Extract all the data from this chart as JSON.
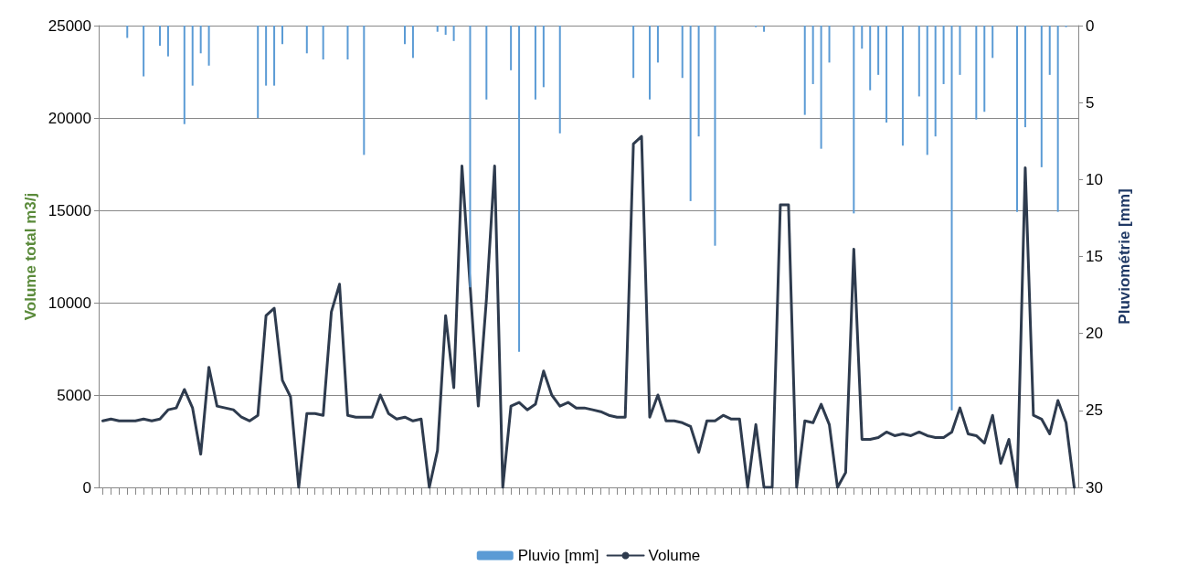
{
  "chart_data": {
    "type": "line",
    "ylabel": "Volume total m3/j",
    "y2label": "Pluviométrie [mm]",
    "categories": [
      null,
      null,
      null,
      null,
      null,
      null,
      null,
      null,
      null,
      null,
      null,
      null,
      null,
      null,
      null,
      null,
      null,
      null,
      null,
      null,
      null,
      null,
      null,
      null,
      null,
      null,
      null,
      null,
      null,
      null,
      null,
      null,
      null,
      null,
      null,
      null,
      null,
      null,
      null,
      null,
      null,
      null,
      null,
      null,
      null,
      null,
      null,
      null,
      null,
      null,
      null,
      null,
      null,
      null,
      null,
      null,
      null,
      null,
      null,
      null,
      null,
      null,
      null,
      null,
      null,
      null,
      null,
      null,
      null,
      null,
      null,
      null,
      null,
      null,
      null,
      null,
      null,
      null,
      null,
      null,
      null,
      null,
      null,
      null,
      null,
      null,
      null,
      null,
      null,
      null,
      null,
      null,
      null,
      null,
      null,
      null,
      null,
      null,
      null,
      null,
      null,
      null,
      null,
      null,
      null,
      null,
      null,
      null,
      null,
      null,
      null,
      null,
      null,
      null,
      null,
      null,
      null,
      null,
      null,
      null
    ],
    "series": [
      {
        "name": "Pluvio [mm]",
        "type": "bar",
        "axis": "y2",
        "color": "#5b9bd5",
        "values": [
          0,
          0,
          0,
          0.8,
          0,
          3.3,
          0,
          1.3,
          2.0,
          0,
          6.4,
          3.9,
          1.8,
          2.6,
          0,
          0,
          0,
          0,
          0,
          6.0,
          3.9,
          3.9,
          1.2,
          0,
          0,
          1.8,
          0,
          2.2,
          0,
          0,
          2.2,
          0,
          8.4,
          0,
          0,
          0,
          0,
          1.2,
          2.1,
          0,
          0,
          0.4,
          0.6,
          1.0,
          0,
          17.0,
          0,
          4.8,
          0,
          0,
          2.9,
          21.2,
          0,
          4.8,
          4.0,
          0,
          7.0,
          0,
          0,
          0,
          0,
          0,
          0,
          0,
          0,
          3.4,
          0,
          4.8,
          2.4,
          0,
          0,
          3.4,
          11.4,
          7.2,
          0,
          14.3,
          0,
          0,
          0,
          0,
          0.1,
          0.4,
          0,
          0,
          0,
          0,
          5.8,
          3.8,
          8.0,
          2.4,
          0,
          0,
          12.2,
          1.5,
          4.2,
          3.2,
          6.3,
          0,
          7.8,
          0,
          4.6,
          8.4,
          7.2,
          3.8,
          25,
          3.2,
          0,
          6.1,
          5.6,
          2.1,
          0,
          0,
          12.1,
          6.6,
          0,
          9.2,
          3.2,
          12.1,
          0.1,
          0
        ]
      },
      {
        "name": "Volume",
        "color": "#2e3b4e",
        "values": [
          3600,
          3700,
          3600,
          3600,
          3600,
          3700,
          3600,
          3700,
          4200,
          4300,
          5300,
          4300,
          1800,
          6500,
          4400,
          4300,
          4200,
          3800,
          3600,
          3900,
          9300,
          9700,
          5800,
          4900,
          0,
          4000,
          4000,
          3900,
          9500,
          11000,
          3900,
          3800,
          3800,
          3800,
          5000,
          4000,
          3700,
          3800,
          3600,
          3700,
          0,
          2000,
          9300,
          5400,
          17400,
          10900,
          4400,
          10200,
          17400,
          0,
          4400,
          4600,
          4200,
          4500,
          6300,
          5000,
          4400,
          4600,
          4300,
          4300,
          4200,
          4100,
          3900,
          3800,
          3800,
          18600,
          19000,
          3800,
          5000,
          3600,
          3600,
          3500,
          3300,
          1900,
          3600,
          3600,
          3900,
          3700,
          3700,
          0,
          3400,
          0,
          0,
          15300,
          15300,
          0,
          3600,
          3500,
          4500,
          3400,
          0,
          800,
          12900,
          2600,
          2600,
          2700,
          3000,
          2800,
          2900,
          2800,
          3000,
          2800,
          2700,
          2700,
          3000,
          4300,
          2900,
          2800,
          2400,
          3900,
          1300,
          2600,
          0,
          17300,
          3900,
          3700,
          2900,
          4700,
          3500,
          0
        ]
      }
    ],
    "ylim": [
      0,
      25000
    ],
    "yticks": [
      0,
      5000,
      10000,
      15000,
      20000,
      25000
    ],
    "y2lim": [
      30,
      0
    ],
    "y2ticks": [
      0,
      5,
      10,
      15,
      20,
      25,
      30
    ],
    "grid": "y",
    "legend": "bottom",
    "marker": "none",
    "line_style": "solid"
  }
}
